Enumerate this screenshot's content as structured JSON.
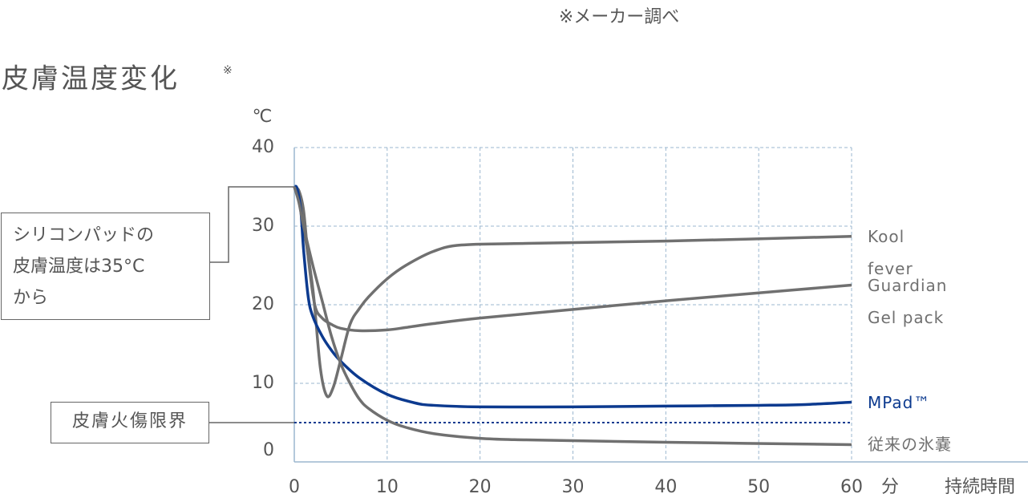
{
  "chart_data": {
    "type": "line",
    "note": "※メーカー調べ",
    "title": "皮膚温度変化",
    "title_mark": "※",
    "y_unit": "℃",
    "x_unit": "分",
    "x_label": "持続時間",
    "xlim": [
      0,
      60
    ],
    "xticks": [
      0,
      10,
      20,
      30,
      40,
      50,
      60
    ],
    "ylim": [
      0,
      40
    ],
    "yticks": [
      0,
      10,
      20,
      30,
      40
    ],
    "grid": true,
    "series": [
      {
        "name": "Kool fever",
        "color": "#707070",
        "x": [
          0,
          0.5,
          1,
          2,
          2.8,
          3.5,
          4.2,
          5,
          6,
          7,
          8,
          10,
          12,
          15,
          18,
          25,
          40,
          60
        ],
        "values": [
          35,
          34,
          30,
          22,
          12,
          8.4,
          9.5,
          13,
          17.5,
          19.5,
          21,
          23.3,
          25,
          26.8,
          27.6,
          27.8,
          28.1,
          28.7
        ]
      },
      {
        "name": "Guardian Gel pack",
        "color": "#707070",
        "x": [
          0,
          0.5,
          1,
          1.5,
          2.2,
          3,
          4,
          5,
          7,
          10,
          12,
          15,
          20,
          30,
          40,
          50,
          60
        ],
        "values": [
          35,
          34.5,
          32,
          26,
          20,
          18.3,
          17.5,
          17,
          16.7,
          16.8,
          17.1,
          17.6,
          18.3,
          19.4,
          20.5,
          21.5,
          22.5
        ]
      },
      {
        "name": "MPad™",
        "color": "#0c3a8f",
        "x": [
          0,
          0.3,
          0.7,
          1,
          1.5,
          2,
          3,
          4,
          5,
          7,
          10,
          13,
          15,
          20,
          30,
          40,
          50,
          55,
          60
        ],
        "values": [
          35,
          34.8,
          32,
          27,
          21,
          18.5,
          16,
          14.2,
          12.8,
          10.7,
          8.6,
          7.5,
          7.2,
          7,
          7,
          7.1,
          7.2,
          7.3,
          7.6
        ]
      },
      {
        "name": "従来の氷嚢",
        "color": "#707070",
        "x": [
          0,
          0.5,
          1,
          2,
          3,
          4,
          5,
          6,
          7,
          8,
          10,
          12,
          15,
          20,
          25,
          40,
          60
        ],
        "values": [
          35,
          33,
          30,
          25,
          20.5,
          16,
          12.5,
          10,
          8,
          6.8,
          5.3,
          4.4,
          3.6,
          3,
          2.8,
          2.5,
          2.2
        ]
      }
    ],
    "threshold": {
      "value": 5,
      "label": "皮膚火傷限界",
      "color": "#0c3a8f"
    },
    "callout": {
      "x": 0,
      "y": 35,
      "lines": [
        "シリコンパッドの",
        "皮膚温度は35°C",
        "から"
      ]
    }
  }
}
